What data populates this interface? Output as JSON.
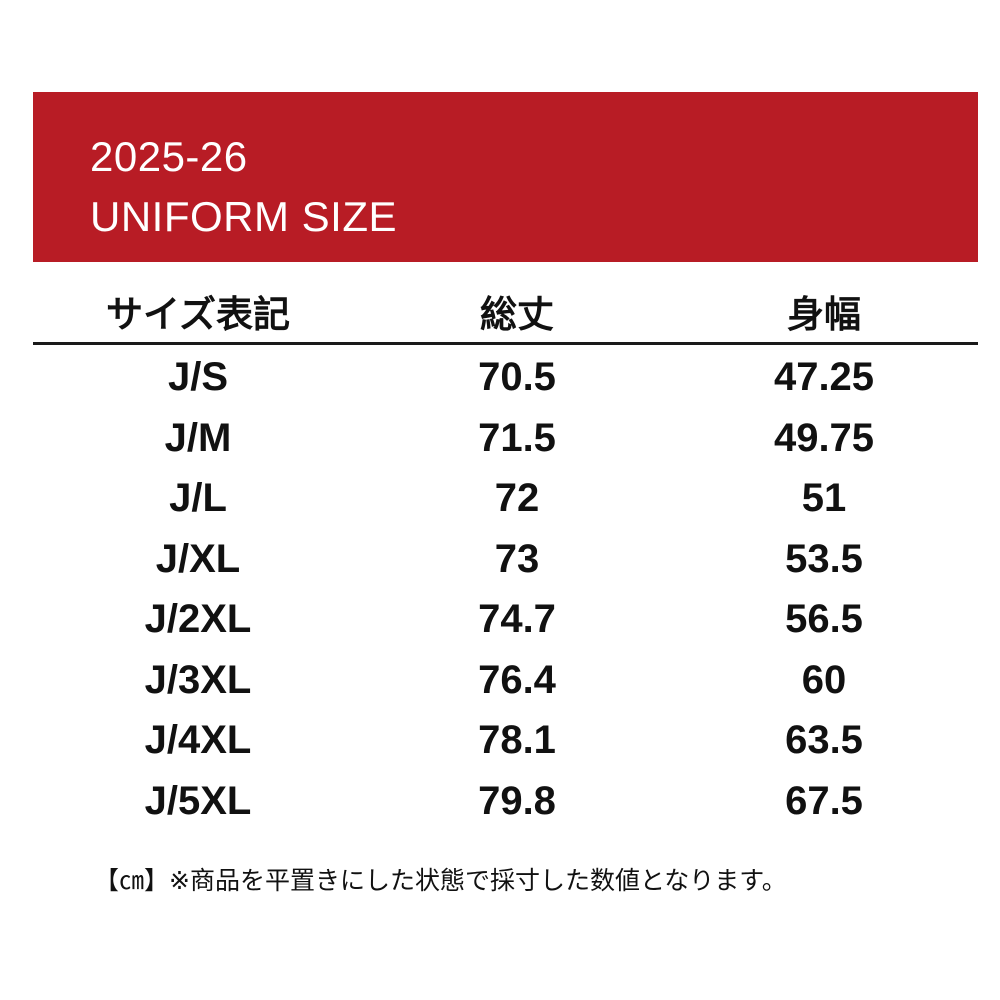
{
  "banner": {
    "line1": "2025-26",
    "line2": "UNIFORM SIZE",
    "color": "#b81c25"
  },
  "table": {
    "headers": [
      "サイズ表記",
      "総丈",
      "身幅"
    ],
    "rows": [
      [
        "J/S",
        "70.5",
        "47.25"
      ],
      [
        "J/M",
        "71.5",
        "49.75"
      ],
      [
        "J/L",
        "72",
        "51"
      ],
      [
        "J/XL",
        "73",
        "53.5"
      ],
      [
        "J/2XL",
        "74.7",
        "56.5"
      ],
      [
        "J/3XL",
        "76.4",
        "60"
      ],
      [
        "J/4XL",
        "78.1",
        "63.5"
      ],
      [
        "J/5XL",
        "79.8",
        "67.5"
      ]
    ]
  },
  "note": "【㎝】※商品を平置きにした状態で採寸した数値となります。"
}
